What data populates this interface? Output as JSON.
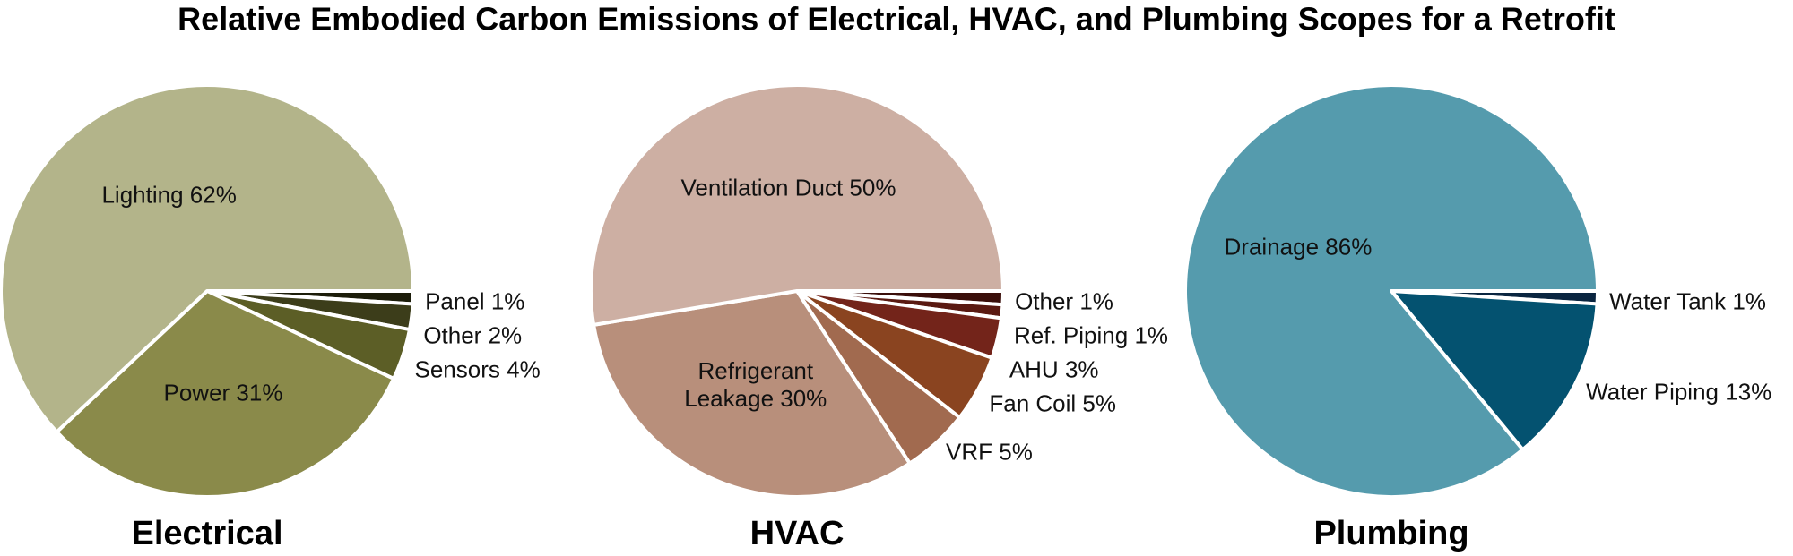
{
  "title": "Relative Embodied Carbon Emissions of Electrical, HVAC, and Plumbing Scopes for a Retrofit",
  "chart_data": [
    {
      "type": "pie",
      "title": "Electrical",
      "categories": [
        "Panel",
        "Other",
        "Sensors",
        "Power",
        "Lighting"
      ],
      "values": [
        1,
        2,
        4,
        31,
        62
      ],
      "value_labels": [
        "1%",
        "2%",
        "4%",
        "31%",
        "62%"
      ],
      "colors": [
        "#1c1d0a",
        "#3c3d1a",
        "#5c5e26",
        "#8a8a4a",
        "#b3b48a"
      ]
    },
    {
      "type": "pie",
      "title": "HVAC",
      "categories": [
        "Other",
        "Ref. Piping",
        "AHU",
        "Fan Coil",
        "VRF",
        "Refrigerant Leakage",
        "Ventilation Duct"
      ],
      "values": [
        1,
        1,
        3,
        5,
        5,
        30,
        50
      ],
      "value_labels": [
        "1%",
        "1%",
        "3%",
        "5%",
        "5%",
        "30%",
        "50%"
      ],
      "colors": [
        "#3a0e0a",
        "#5a1a12",
        "#73241a",
        "#8a4420",
        "#a16a4f",
        "#b88f7b",
        "#cdafa3"
      ]
    },
    {
      "type": "pie",
      "title": "Plumbing",
      "categories": [
        "Water Tank",
        "Water Piping",
        "Drainage"
      ],
      "values": [
        1,
        13,
        86
      ],
      "value_labels": [
        "1%",
        "13%",
        "86%"
      ],
      "colors": [
        "#0a2540",
        "#045270",
        "#559bad"
      ]
    }
  ]
}
